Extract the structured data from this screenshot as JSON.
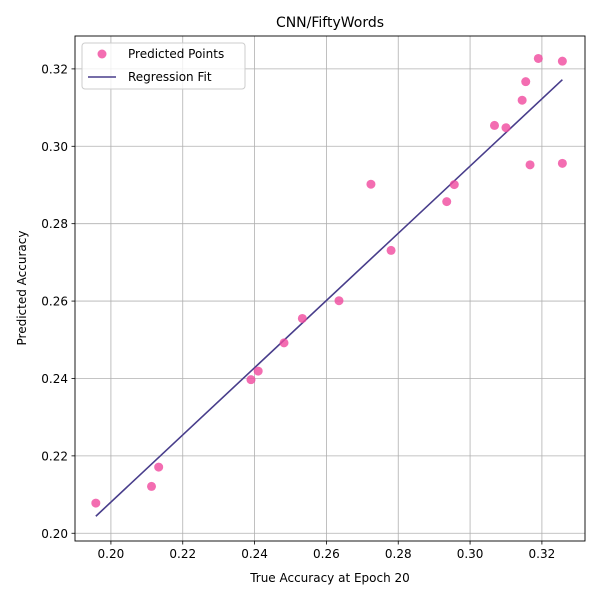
{
  "chart_data": {
    "type": "scatter",
    "title": "CNN/FiftyWords",
    "xlabel": "True Accuracy at Epoch 20",
    "ylabel": "Predicted Accuracy",
    "xlim": [
      0.19,
      0.332
    ],
    "ylim": [
      0.198,
      0.3285
    ],
    "xticks": [
      "0.20",
      "0.22",
      "0.24",
      "0.26",
      "0.28",
      "0.30",
      "0.32"
    ],
    "xtick_values": [
      0.2,
      0.22,
      0.24,
      0.26,
      0.28,
      0.3,
      0.32
    ],
    "yticks": [
      "0.20",
      "0.22",
      "0.24",
      "0.26",
      "0.28",
      "0.30",
      "0.32"
    ],
    "ytick_values": [
      0.2,
      0.22,
      0.24,
      0.26,
      0.28,
      0.3,
      0.32
    ],
    "grid": true,
    "legend_position": "top-left",
    "colors": {
      "points": "#f0489e",
      "line": "#483d8b",
      "grid": "#b0b0b0"
    },
    "series": [
      {
        "name": "Predicted Points",
        "kind": "scatter",
        "points": [
          [
            0.1958,
            0.2078
          ],
          [
            0.2113,
            0.2121
          ],
          [
            0.2133,
            0.2171
          ],
          [
            0.239,
            0.2397
          ],
          [
            0.241,
            0.2419
          ],
          [
            0.2482,
            0.2492
          ],
          [
            0.2533,
            0.2555
          ],
          [
            0.2635,
            0.2601
          ],
          [
            0.2724,
            0.2902
          ],
          [
            0.278,
            0.2731
          ],
          [
            0.2935,
            0.2857
          ],
          [
            0.2956,
            0.2901
          ],
          [
            0.3068,
            0.3054
          ],
          [
            0.31,
            0.3048
          ],
          [
            0.3145,
            0.3119
          ],
          [
            0.3155,
            0.3167
          ],
          [
            0.3167,
            0.2952
          ],
          [
            0.319,
            0.3227
          ],
          [
            0.3257,
            0.322
          ],
          [
            0.3257,
            0.2956
          ]
        ]
      },
      {
        "name": "Regression Fit",
        "kind": "line",
        "points": [
          [
            0.1958,
            0.2044
          ],
          [
            0.3257,
            0.3172
          ]
        ]
      }
    ]
  }
}
